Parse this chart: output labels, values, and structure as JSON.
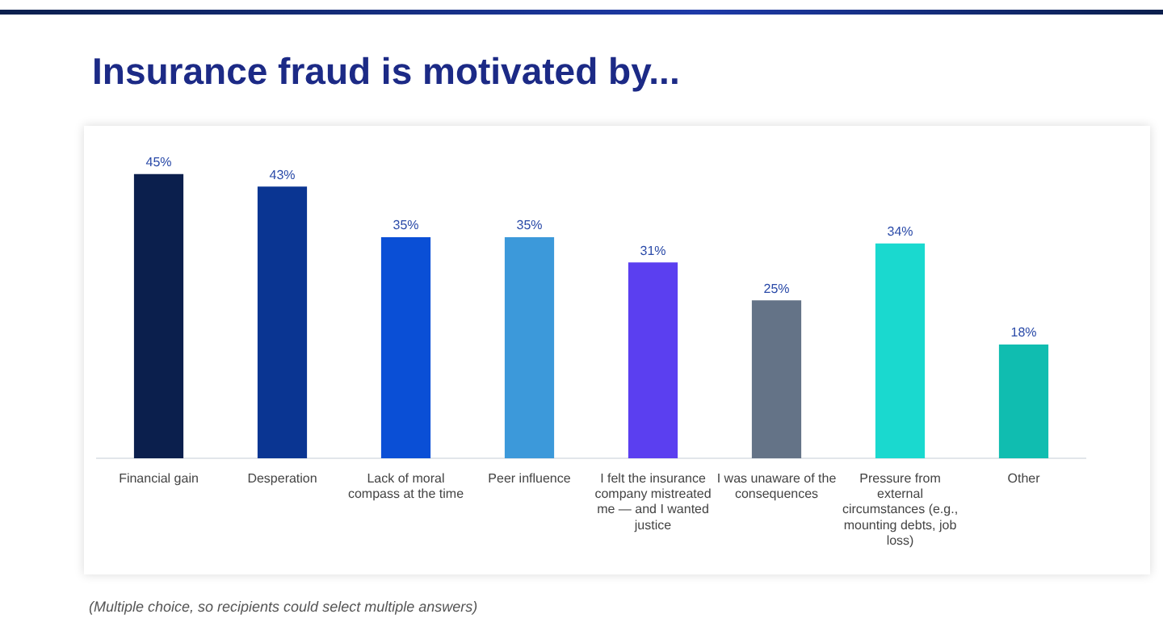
{
  "chart_data": {
    "type": "bar",
    "title": "Insurance fraud is motivated by...",
    "categories": [
      "Financial gain",
      "Desperation",
      "Lack of moral compass at the time",
      "Peer influence",
      "I felt the insurance company mistreated me — and I wanted justice",
      "I was unaware of the consequences",
      "Pressure from external circumstances (e.g., mounting debts, job loss)",
      "Other"
    ],
    "values": [
      45,
      43,
      35,
      35,
      31,
      25,
      34,
      18
    ],
    "colors": [
      "#0b1f4d",
      "#0a3592",
      "#0a4fd6",
      "#3c99da",
      "#5b3ff0",
      "#647387",
      "#1ad9cf",
      "#10bdb0"
    ],
    "value_labels": [
      "45%",
      "43%",
      "35%",
      "35%",
      "31%",
      "25%",
      "34%",
      "18%"
    ],
    "grid": false,
    "legend": false,
    "annotations": [
      "(Multiple choice, so recipients could select multiple answers)"
    ]
  }
}
